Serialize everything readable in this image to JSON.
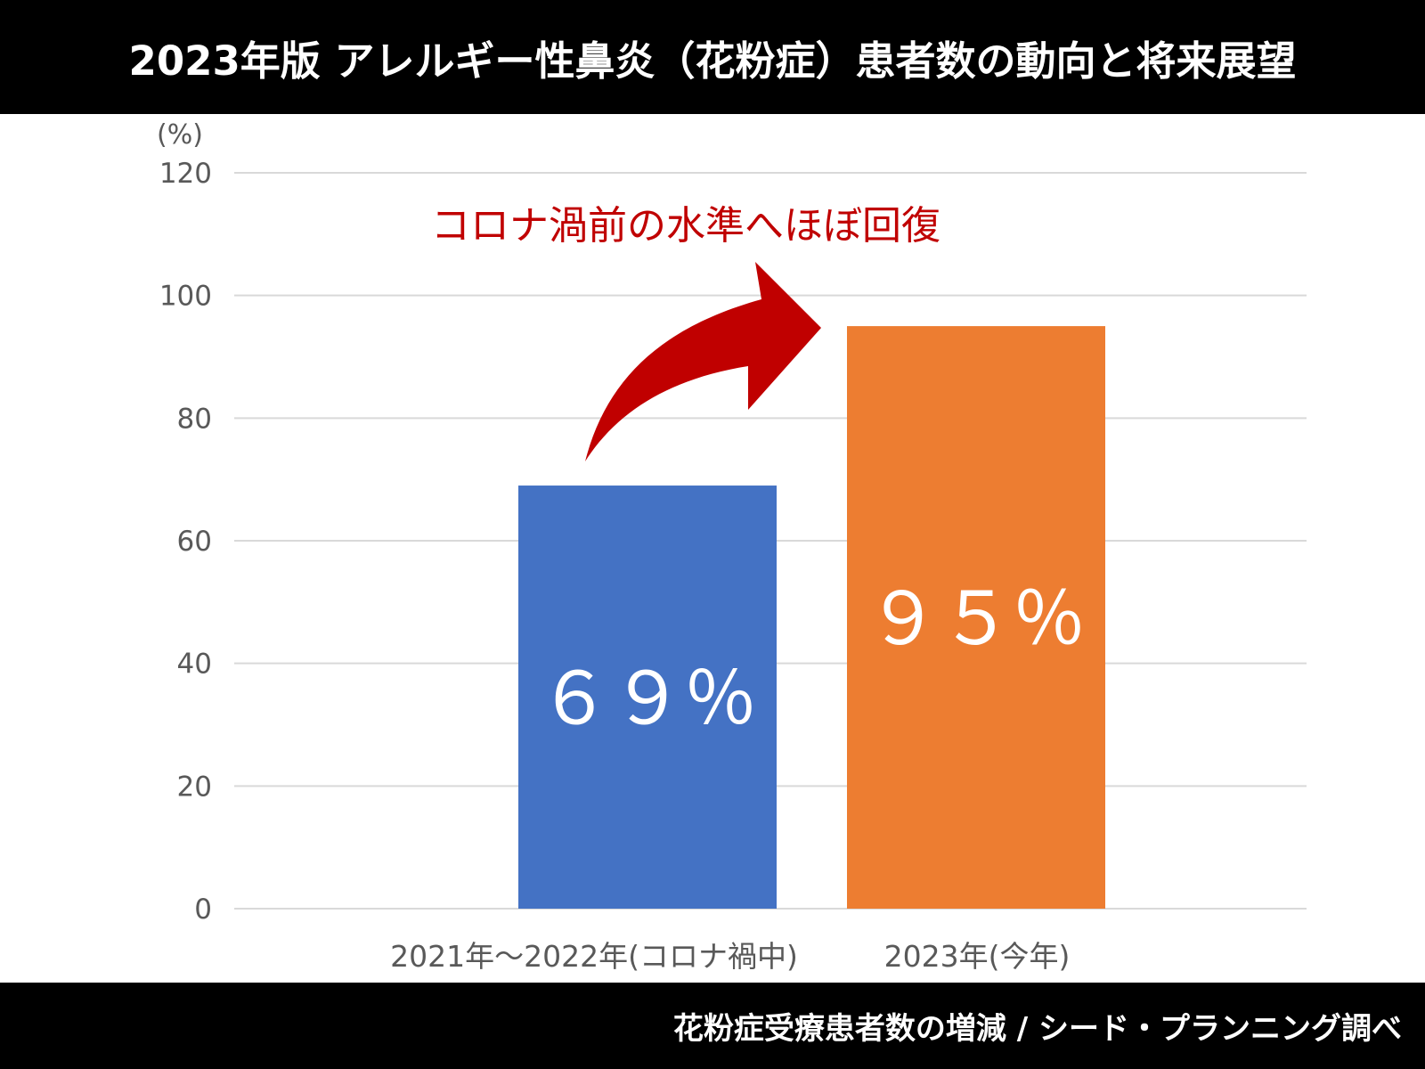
{
  "header": {
    "title": "2023年版 アレルギー性鼻炎（花粉症）患者数の動向と将来展望"
  },
  "footer": {
    "source": "花粉症受療患者数の増減 / シード・プランニング調べ"
  },
  "chart_data": {
    "type": "bar",
    "title": "2023年版 アレルギー性鼻炎（花粉症）患者数の動向と将来展望",
    "ylabel": "(%)",
    "xlabel": "",
    "ylim": [
      0,
      120
    ],
    "yticks": [
      0,
      20,
      40,
      60,
      80,
      100,
      120
    ],
    "grid": true,
    "categories": [
      "2021年～2022年(コロナ禍中)",
      "2023年(今年)"
    ],
    "values": [
      69,
      95
    ],
    "bar_labels": [
      "６９％",
      "９５％"
    ],
    "colors": [
      "#4472c4",
      "#ed7d31"
    ],
    "annotation": {
      "text": "コロナ渦前の水準へほぼ回復",
      "color": "#c00000"
    }
  }
}
